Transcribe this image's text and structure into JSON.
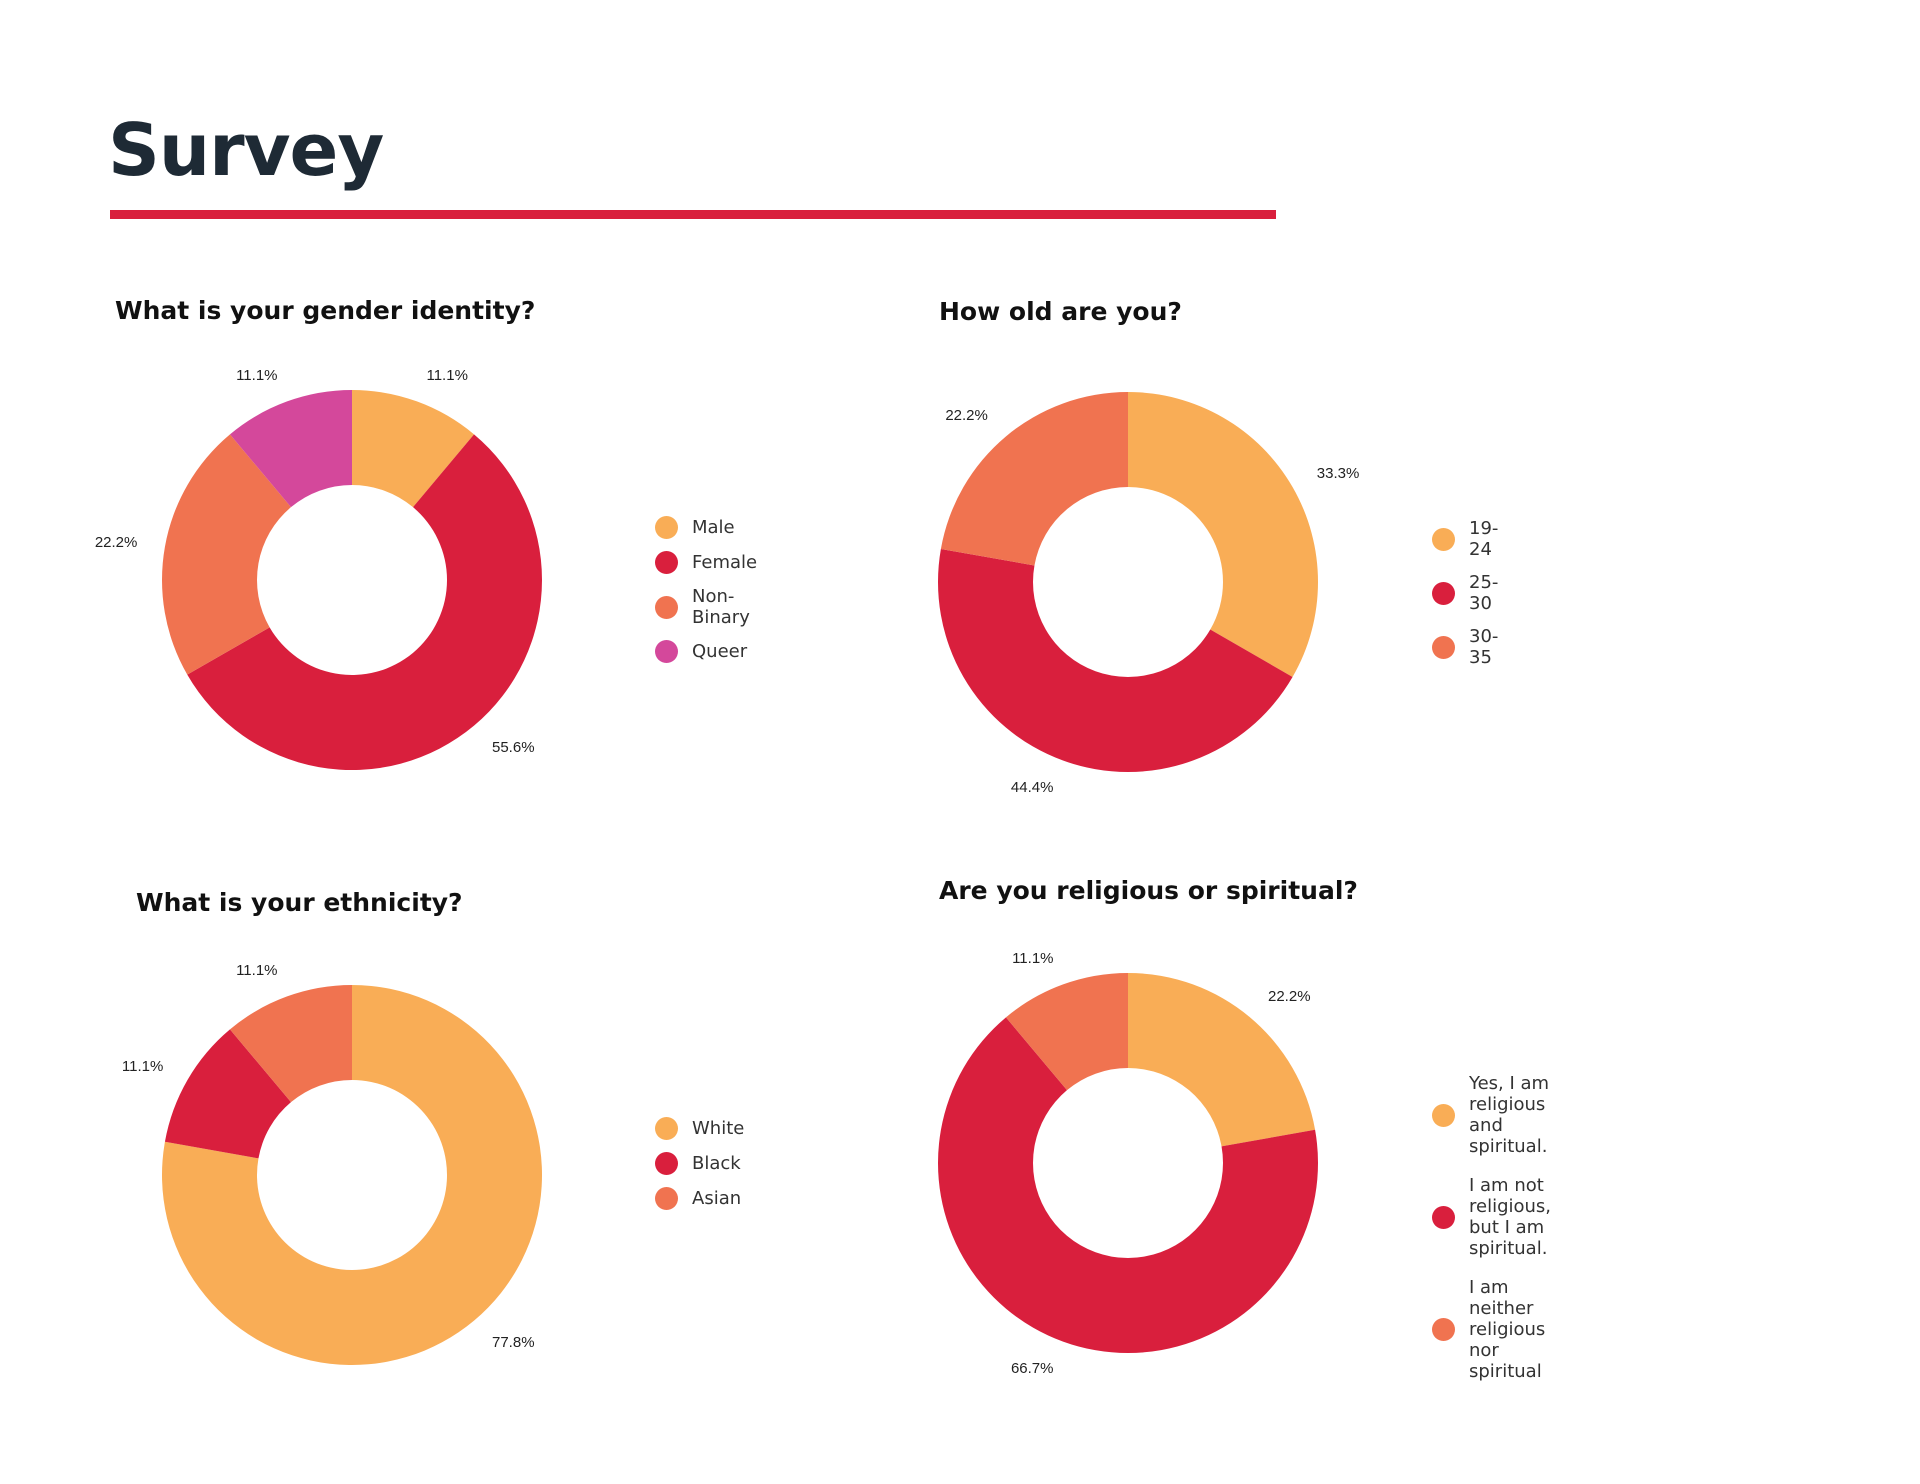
{
  "page": {
    "title": "Survey"
  },
  "colors": {
    "orange": "#f9ad56",
    "red": "#d91f3d",
    "coral": "#f07350",
    "magenta": "#d4489b",
    "title_rule": "#d91f3d"
  },
  "chart_data": [
    {
      "id": "gender",
      "type": "pie",
      "title": "What is your gender identity?",
      "categories": [
        "Male",
        "Female",
        "Non-Binary",
        "Queer"
      ],
      "values": [
        11.1,
        55.6,
        22.2,
        11.1
      ],
      "labels": [
        "11.1%",
        "55.6%",
        "22.2%",
        "11.1%"
      ],
      "colors": [
        "#f9ad56",
        "#d91f3d",
        "#f07350",
        "#d4489b"
      ],
      "donut": true,
      "legend_position": "right"
    },
    {
      "id": "age",
      "type": "pie",
      "title": "How old are you?",
      "categories": [
        "19-24",
        "25-30",
        "30-35"
      ],
      "values": [
        33.3,
        44.4,
        22.2
      ],
      "labels": [
        "33.3%",
        "44.4%",
        "22.2%"
      ],
      "colors": [
        "#f9ad56",
        "#d91f3d",
        "#f07350"
      ],
      "donut": true,
      "legend_position": "right"
    },
    {
      "id": "ethnicity",
      "type": "pie",
      "title": "What is your ethnicity?",
      "categories": [
        "White",
        "Black",
        "Asian"
      ],
      "values": [
        77.8,
        11.1,
        11.1
      ],
      "labels": [
        "77.8%",
        "11.1%",
        "11.1%"
      ],
      "colors": [
        "#f9ad56",
        "#d91f3d",
        "#f07350"
      ],
      "donut": true,
      "legend_position": "right"
    },
    {
      "id": "religion",
      "type": "pie",
      "title": "Are you religious or spiritual?",
      "categories": [
        "Yes, I am religious\nand spiritual.",
        "I am not religious,\nbut I am spiritual.",
        "I am neither religious\nnor spiritual"
      ],
      "values": [
        22.2,
        66.7,
        11.1
      ],
      "labels": [
        "22.2%",
        "66.7%",
        "11.1%"
      ],
      "colors": [
        "#f9ad56",
        "#d91f3d",
        "#f07350"
      ],
      "donut": true,
      "legend_position": "right"
    }
  ]
}
